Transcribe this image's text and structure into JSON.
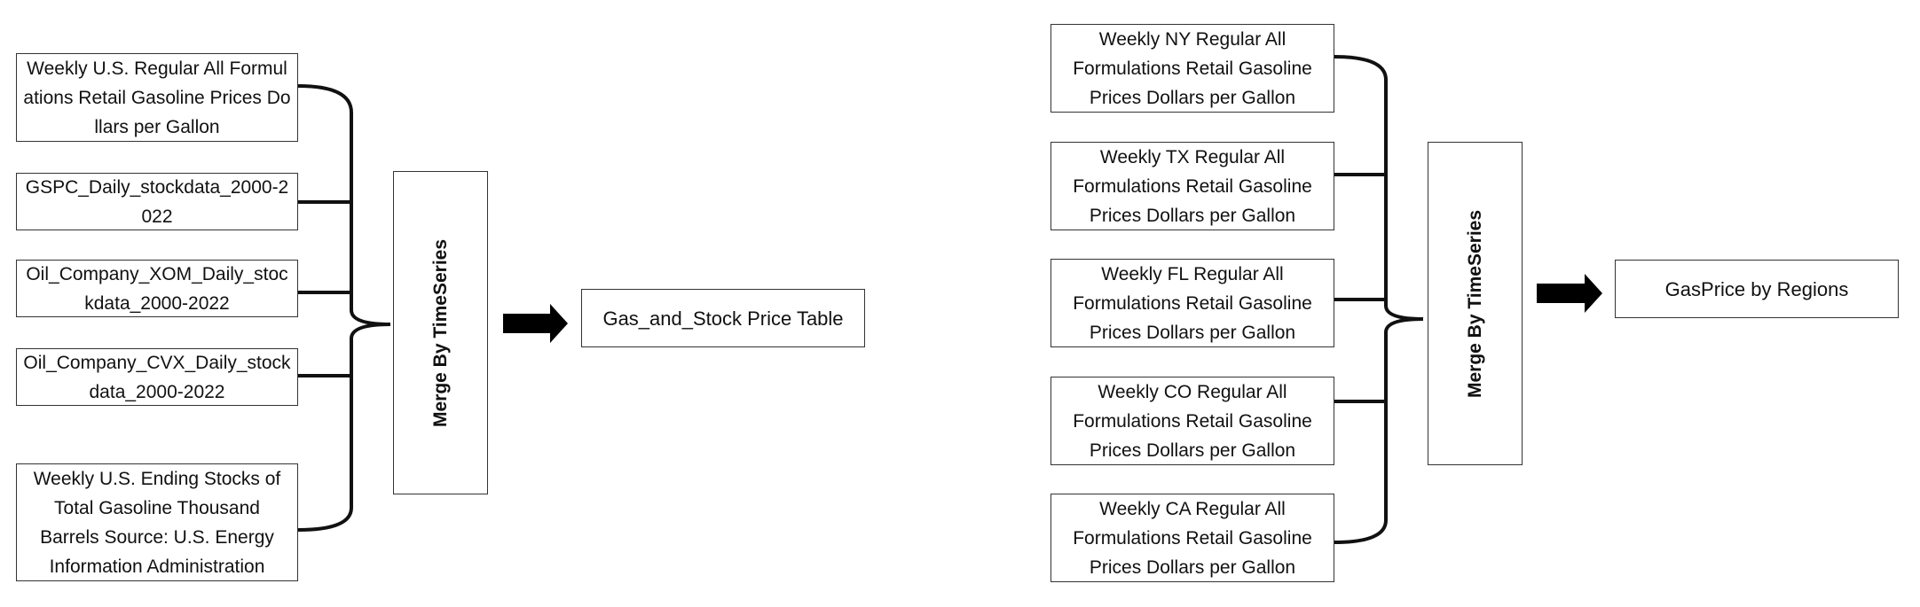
{
  "left_flow": {
    "sources": [
      "Weekly U.S. Regular All Formulations Retail Gasoline Prices Dollars per Gallon",
      "GSPC_Daily_stockdata_2000-2022",
      "Oil_Company_XOM_Daily_stockdata_2000-2022",
      "Oil_Company_CVX_Daily_stockdata_2000-2022",
      "Weekly U.S. Ending Stocks of Total Gasoline Thousand Barrels Source: U.S. Energy Information Administration"
    ],
    "merge_label": "Merge By TimeSeries",
    "output": "Gas_and_Stock Price Table"
  },
  "right_flow": {
    "sources": [
      "Weekly NY Regular All Formulations Retail Gasoline Prices Dollars per Gallon",
      "Weekly TX Regular All Formulations Retail Gasoline Prices Dollars per Gallon",
      "Weekly FL Regular All Formulations Retail Gasoline Prices Dollars per Gallon",
      "Weekly CO Regular All Formulations Retail Gasoline Prices Dollars per Gallon",
      "Weekly CA Regular All Formulations Retail Gasoline Prices Dollars per Gallon"
    ],
    "merge_label": "Merge By TimeSeries",
    "output": "GasPrice by Regions"
  },
  "colors": {
    "border": "#333333",
    "connector": "#111111",
    "arrow": "#000000",
    "background": "#ffffff"
  }
}
